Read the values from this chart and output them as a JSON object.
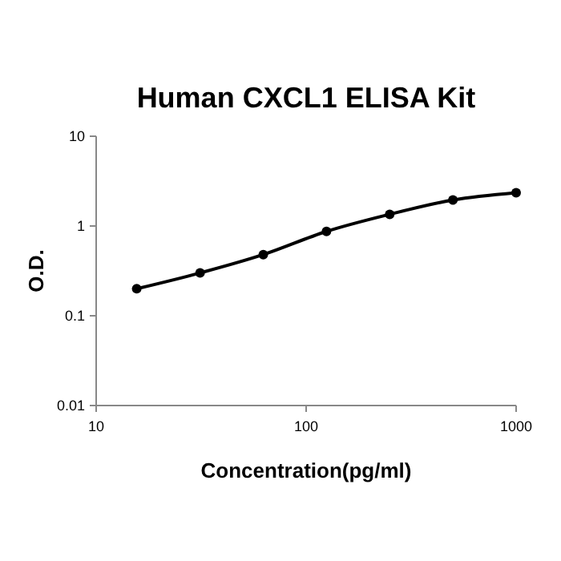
{
  "chart_data": {
    "type": "line",
    "title": "Human CXCL1 ELISA Kit",
    "xlabel": "Concentration(pg/ml)",
    "ylabel": "O.D.",
    "x": [
      15.6,
      31.25,
      62.5,
      125,
      250,
      500,
      1000
    ],
    "series": [
      {
        "color": "#000000",
        "values": [
          0.2,
          0.3,
          0.48,
          0.87,
          1.35,
          1.95,
          2.35
        ]
      }
    ],
    "log": "xy",
    "xlim": [
      10,
      1000
    ],
    "ylim": [
      0.01,
      10
    ],
    "xticks": [
      10,
      100,
      1000
    ],
    "yticks": [
      0.01,
      0.1,
      1,
      10
    ],
    "grid": false,
    "marker": "circle",
    "line_style": "solid"
  }
}
